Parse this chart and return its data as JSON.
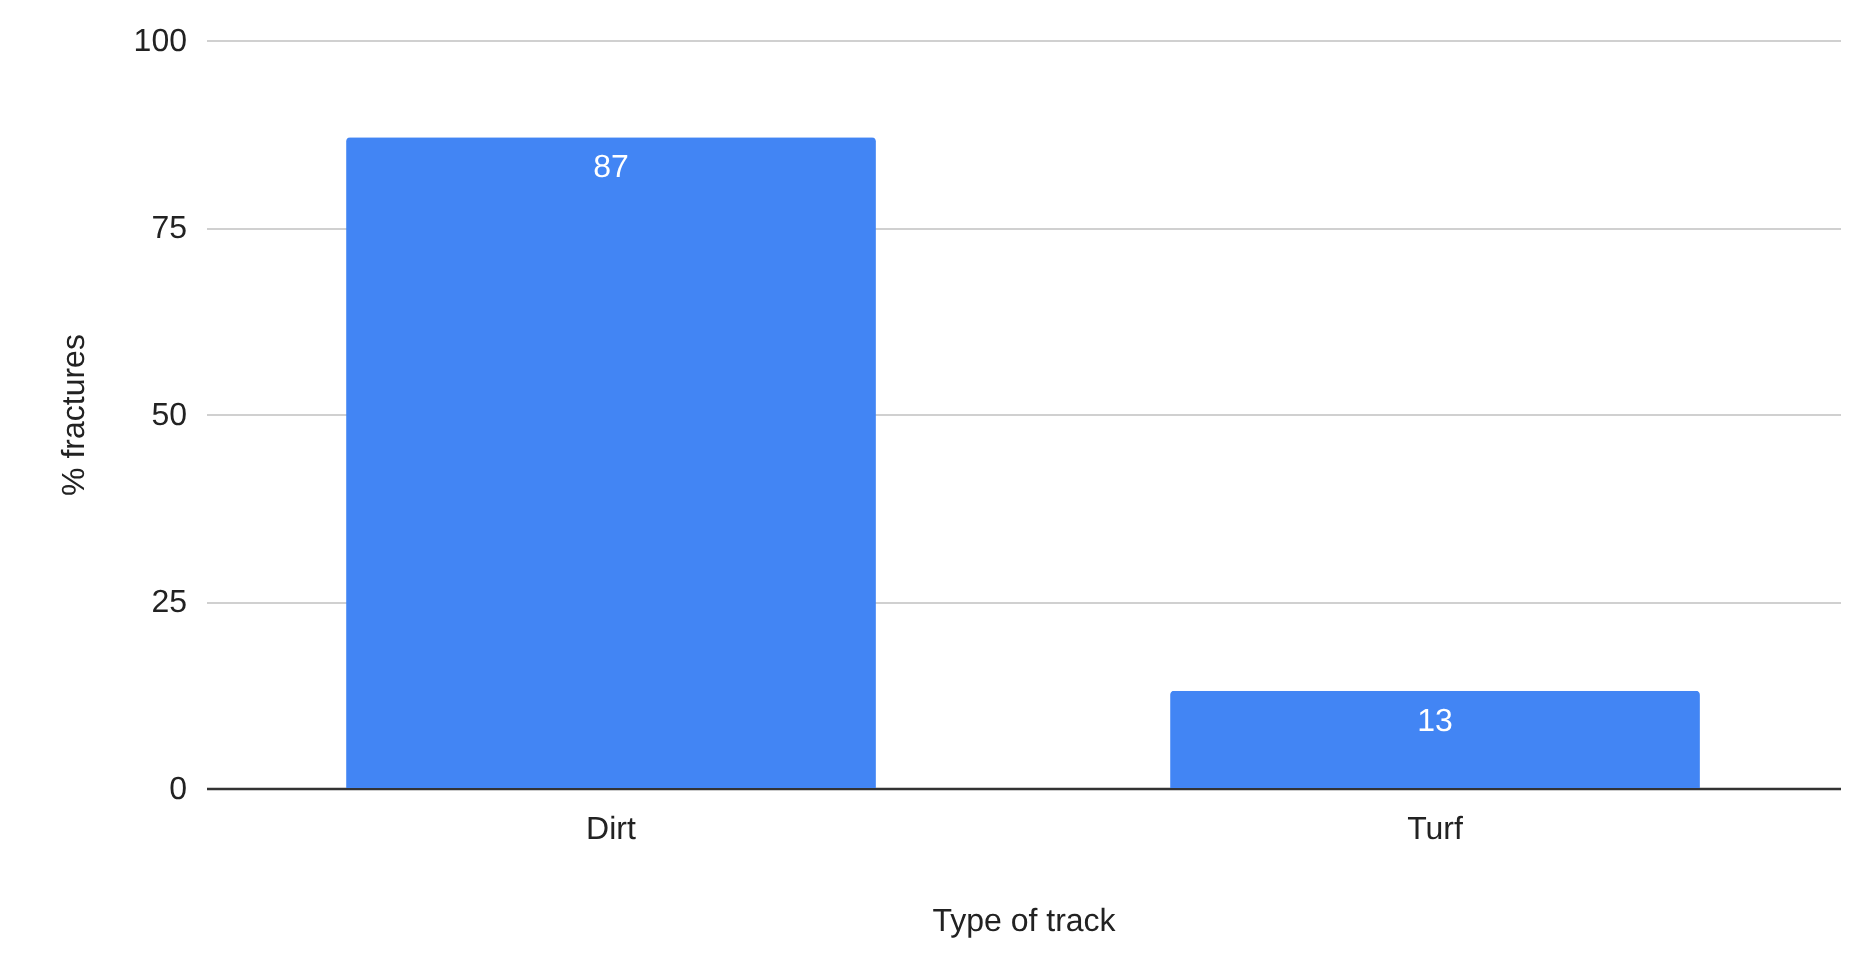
{
  "chart_data": {
    "type": "bar",
    "xlabel": "Type of track",
    "ylabel": "% fractures",
    "categories": [
      "Dirt",
      "Turf"
    ],
    "values": [
      87,
      13
    ],
    "color": "#4285f4",
    "ylim": [
      0,
      100
    ],
    "yticks": [
      0,
      25,
      50,
      75,
      100
    ],
    "grid": "y",
    "data_labels": true
  }
}
